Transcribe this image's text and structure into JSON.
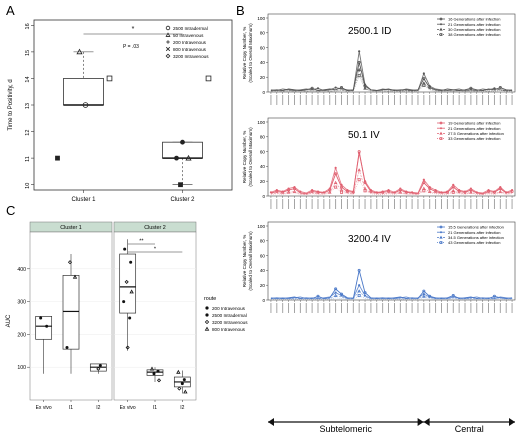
{
  "panel_labels": {
    "a": "A",
    "b": "B",
    "c": "C"
  },
  "chart_data": [
    {
      "id": "A",
      "type": "box",
      "ylabel": "Time to Positivity, d",
      "ylim": [
        9.8,
        16.2
      ],
      "yticks": [
        10,
        11,
        12,
        13,
        14,
        15,
        16
      ],
      "categories": [
        "Cluster 1",
        "Cluster 2"
      ],
      "significance": {
        "star": "*",
        "p_text": "P = .03"
      },
      "boxes": [
        {
          "category": "Cluster 1",
          "q1": 13,
          "median": 13,
          "q3": 14,
          "whisker_low": 13,
          "whisker_high": 15
        },
        {
          "category": "Cluster 2",
          "q1": 11,
          "median": 11,
          "q3": 11.6,
          "whisker_low": 10,
          "whisker_high": 11.6
        }
      ],
      "legend": {
        "placement": "top-right",
        "entries": [
          {
            "name": "2500 Intradermal",
            "marker": "circle"
          },
          {
            "name": "50 Intravenous",
            "marker": "triangle"
          },
          {
            "name": "200 Intravenous",
            "marker": "plus"
          },
          {
            "name": "800 Intravenous",
            "marker": "x"
          },
          {
            "name": "3200 Intravenous",
            "marker": "diamond"
          }
        ]
      },
      "points": [
        {
          "category": "Cluster 1",
          "y": 15,
          "marker": "triangle"
        },
        {
          "category": "Cluster 1",
          "y": 13,
          "marker": "circle"
        },
        {
          "category": "Cluster 1",
          "y": 11,
          "marker": "filled-square"
        },
        {
          "category": "Cluster 1",
          "y": 14,
          "marker": "square"
        },
        {
          "category": "Cluster 2",
          "y": 11.6,
          "marker": "filled-circle"
        },
        {
          "category": "Cluster 2",
          "y": 11,
          "marker": "filled-circle"
        },
        {
          "category": "Cluster 2",
          "y": 11,
          "marker": "triangle"
        },
        {
          "category": "Cluster 2",
          "y": 10,
          "marker": "filled-square"
        },
        {
          "category": "Cluster 2",
          "y": 14,
          "marker": "square"
        }
      ]
    },
    {
      "id": "B",
      "type": "line",
      "ylabel": "Relative Copy Number, %\n(Scaled to Overall Maximum)",
      "ylim": [
        0,
        100
      ],
      "yticks": [
        0,
        20,
        40,
        60,
        80,
        100
      ],
      "n_loci": 42,
      "group_labels": {
        "left": "Subtelomeric",
        "right": "Central"
      },
      "panels": [
        {
          "title": "2500.1 ID",
          "color": "#555555",
          "legend": [
            "16 Generations after infection",
            "21 Generations after infection",
            "30 Generations after infection",
            "38 Generations after infection"
          ],
          "series": [
            {
              "name": "16 Generations after infection",
              "values": [
                2,
                3,
                2,
                4,
                3,
                2,
                3,
                5,
                2,
                3,
                4,
                3,
                6,
                2,
                3,
                40,
                8,
                3,
                2,
                3,
                4,
                2,
                3,
                3,
                2,
                3,
                18,
                6,
                3,
                2,
                4,
                3,
                2,
                3,
                5,
                3,
                2,
                4,
                3,
                6,
                3,
                2
              ]
            },
            {
              "name": "21 Generations after infection",
              "values": [
                3,
                2,
                4,
                3,
                2,
                3,
                4,
                3,
                5,
                2,
                3,
                6,
                4,
                3,
                2,
                55,
                10,
                3,
                2,
                4,
                3,
                3,
                2,
                4,
                3,
                2,
                25,
                8,
                4,
                3,
                2,
                3,
                4,
                2,
                3,
                2,
                4,
                3,
                5,
                3,
                2,
                3
              ]
            },
            {
              "name": "30 Generations after infection",
              "values": [
                1,
                2,
                1,
                2,
                1,
                2,
                1,
                2,
                1,
                2,
                1,
                2,
                3,
                1,
                2,
                30,
                5,
                2,
                1,
                2,
                1,
                2,
                1,
                2,
                1,
                2,
                12,
                4,
                2,
                1,
                2,
                1,
                2,
                1,
                2,
                1,
                2,
                1,
                2,
                3,
                1,
                2
              ]
            },
            {
              "name": "38 Generations after infection",
              "values": [
                2,
                1,
                2,
                1,
                2,
                1,
                2,
                1,
                2,
                1,
                2,
                1,
                2,
                2,
                1,
                22,
                4,
                1,
                2,
                1,
                2,
                1,
                2,
                1,
                2,
                1,
                9,
                3,
                1,
                2,
                1,
                2,
                1,
                2,
                1,
                2,
                1,
                2,
                1,
                2,
                2,
                1
              ]
            }
          ]
        },
        {
          "title": "50.1 IV",
          "color": "#e06070",
          "legend": [
            "19 Generations after infection",
            "21 Generations after infection",
            "27.5 Generations after infection",
            "33 Generations after infection"
          ],
          "series": [
            {
              "name": "19 Generations after infection",
              "values": [
                4,
                6,
                5,
                8,
                10,
                4,
                3,
                6,
                5,
                4,
                8,
                30,
                12,
                6,
                5,
                60,
                18,
                6,
                4,
                5,
                6,
                4,
                8,
                5,
                4,
                3,
                18,
                10,
                6,
                4,
                5,
                12,
                6,
                5,
                8,
                4,
                3,
                6,
                5,
                10,
                4,
                6
              ]
            },
            {
              "name": "21 Generations after infection",
              "values": [
                5,
                8,
                6,
                10,
                12,
                6,
                4,
                8,
                6,
                5,
                10,
                38,
                15,
                8,
                6,
                58,
                20,
                8,
                5,
                6,
                8,
                5,
                10,
                6,
                5,
                4,
                22,
                12,
                8,
                5,
                6,
                15,
                8,
                6,
                10,
                5,
                4,
                8,
                6,
                12,
                5,
                8
              ]
            },
            {
              "name": "27.5 Generations after infection",
              "values": [
                3,
                4,
                3,
                5,
                6,
                3,
                2,
                4,
                3,
                3,
                5,
                18,
                8,
                4,
                3,
                35,
                10,
                4,
                3,
                3,
                4,
                3,
                5,
                3,
                3,
                2,
                10,
                6,
                4,
                3,
                3,
                7,
                4,
                3,
                5,
                3,
                2,
                4,
                3,
                6,
                3,
                4
              ]
            },
            {
              "name": "33 Generations after infection",
              "values": [
                2,
                3,
                2,
                4,
                4,
                2,
                2,
                3,
                2,
                2,
                4,
                12,
                5,
                3,
                2,
                22,
                7,
                3,
                2,
                2,
                3,
                2,
                4,
                2,
                2,
                2,
                7,
                4,
                3,
                2,
                2,
                5,
                3,
                2,
                4,
                2,
                2,
                3,
                2,
                4,
                2,
                3
              ]
            }
          ]
        },
        {
          "title": "3200.4 IV",
          "color": "#4a78c8",
          "legend": [
            "15.5 Generations after infection",
            "21 Generations after infection",
            "34.5 Generations after infection",
            "43 Generations after infection"
          ],
          "series": [
            {
              "name": "15.5 Generations after infection",
              "values": [
                2,
                3,
                2,
                3,
                4,
                2,
                3,
                2,
                5,
                2,
                3,
                15,
                8,
                3,
                2,
                40,
                10,
                3,
                2,
                3,
                2,
                3,
                4,
                2,
                3,
                2,
                12,
                5,
                3,
                2,
                3,
                6,
                2,
                3,
                4,
                2,
                3,
                2,
                5,
                3,
                2,
                3
              ]
            },
            {
              "name": "21 Generations after infection",
              "values": [
                3,
                2,
                3,
                2,
                3,
                4,
                2,
                3,
                2,
                3,
                4,
                10,
                6,
                2,
                3,
                20,
                6,
                2,
                3,
                2,
                3,
                2,
                3,
                4,
                2,
                3,
                8,
                4,
                2,
                3,
                2,
                4,
                3,
                2,
                3,
                4,
                2,
                3,
                2,
                4,
                3,
                2
              ]
            },
            {
              "name": "34.5 Generations after infection",
              "values": [
                2,
                2,
                2,
                2,
                2,
                2,
                2,
                2,
                2,
                2,
                2,
                6,
                4,
                2,
                2,
                12,
                4,
                2,
                2,
                2,
                2,
                2,
                2,
                2,
                2,
                2,
                5,
                3,
                2,
                2,
                2,
                3,
                2,
                2,
                2,
                2,
                2,
                2,
                2,
                3,
                2,
                2
              ]
            },
            {
              "name": "43 Generations after infection",
              "values": [
                1,
                1,
                1,
                1,
                1,
                1,
                1,
                1,
                1,
                1,
                1,
                3,
                2,
                1,
                1,
                6,
                2,
                1,
                1,
                1,
                1,
                1,
                1,
                1,
                1,
                1,
                3,
                2,
                1,
                1,
                1,
                2,
                1,
                1,
                1,
                1,
                1,
                1,
                1,
                2,
                1,
                1
              ]
            }
          ]
        }
      ]
    },
    {
      "id": "C",
      "type": "box",
      "ylabel": "AUC",
      "ylim": [
        0,
        500
      ],
      "yticks": [
        100,
        200,
        300,
        400
      ],
      "facets": [
        {
          "title": "Cluster 1",
          "categories": [
            "Ex vivo",
            "I1",
            "I2"
          ],
          "boxes": [
            {
              "category": "Ex vivo",
              "q1": 185,
              "median": 225,
              "q3": 255,
              "whisker_low": 80,
              "whisker_high": 255
            },
            {
              "category": "I1",
              "q1": 155,
              "median": 270,
              "q3": 380,
              "whisker_low": 80,
              "whisker_high": 445
            },
            {
              "category": "I2",
              "q1": 88,
              "median": 100,
              "q3": 110,
              "whisker_low": 80,
              "whisker_high": 110
            }
          ],
          "points": [
            {
              "category": "Ex vivo",
              "y": 250
            },
            {
              "category": "Ex vivo",
              "y": 225
            },
            {
              "category": "I1",
              "y": 420
            },
            {
              "category": "I1",
              "y": 375
            },
            {
              "category": "I1",
              "y": 160
            },
            {
              "category": "I2",
              "y": 105
            },
            {
              "category": "I2",
              "y": 95
            }
          ]
        },
        {
          "title": "Cluster 2",
          "categories": [
            "Ex vivo",
            "I1",
            "I2"
          ],
          "significance": [
            {
              "pair": [
                "Ex vivo",
                "I1"
              ],
              "star": "**"
            },
            {
              "pair": [
                "Ex vivo",
                "I2"
              ],
              "star": "*"
            }
          ],
          "boxes": [
            {
              "category": "Ex vivo",
              "q1": 265,
              "median": 345,
              "q3": 445,
              "whisker_low": 150,
              "whisker_high": 490
            },
            {
              "category": "I1",
              "q1": 75,
              "median": 85,
              "q3": 92,
              "whisker_low": 55,
              "whisker_high": 100
            },
            {
              "category": "I2",
              "q1": 40,
              "median": 55,
              "q3": 70,
              "whisker_low": 20,
              "whisker_high": 90
            }
          ],
          "points": [
            {
              "category": "Ex vivo",
              "y": 460
            },
            {
              "category": "Ex vivo",
              "y": 420
            },
            {
              "category": "Ex vivo",
              "y": 360
            },
            {
              "category": "Ex vivo",
              "y": 330
            },
            {
              "category": "Ex vivo",
              "y": 300
            },
            {
              "category": "Ex vivo",
              "y": 250
            },
            {
              "category": "Ex vivo",
              "y": 160
            },
            {
              "category": "I1",
              "y": 95
            },
            {
              "category": "I1",
              "y": 88
            },
            {
              "category": "I1",
              "y": 80
            },
            {
              "category": "I1",
              "y": 60
            },
            {
              "category": "I2",
              "y": 85
            },
            {
              "category": "I2",
              "y": 62
            },
            {
              "category": "I2",
              "y": 50
            },
            {
              "category": "I2",
              "y": 35
            },
            {
              "category": "I2",
              "y": 25
            }
          ]
        }
      ],
      "legend": {
        "title": "route",
        "placement": "right",
        "entries": [
          "200 Intravenous",
          "2500 Intradermal",
          "3200 Intravenous",
          "800 Intravenous"
        ]
      }
    }
  ]
}
